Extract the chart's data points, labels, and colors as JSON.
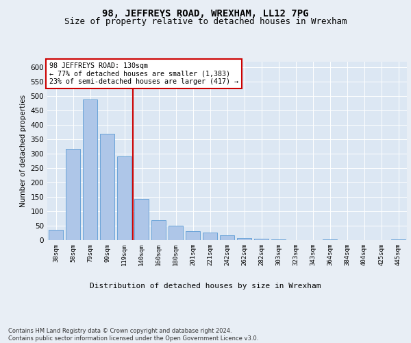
{
  "title": "98, JEFFREYS ROAD, WREXHAM, LL12 7PG",
  "subtitle": "Size of property relative to detached houses in Wrexham",
  "xlabel": "Distribution of detached houses by size in Wrexham",
  "ylabel": "Number of detached properties",
  "categories": [
    "38sqm",
    "58sqm",
    "79sqm",
    "99sqm",
    "119sqm",
    "140sqm",
    "160sqm",
    "180sqm",
    "201sqm",
    "221sqm",
    "242sqm",
    "262sqm",
    "282sqm",
    "303sqm",
    "323sqm",
    "343sqm",
    "364sqm",
    "384sqm",
    "404sqm",
    "425sqm",
    "445sqm"
  ],
  "values": [
    35,
    318,
    488,
    370,
    290,
    143,
    68,
    50,
    30,
    27,
    17,
    8,
    5,
    2,
    0,
    0,
    2,
    0,
    0,
    0,
    2
  ],
  "bar_color": "#aec6e8",
  "bar_edge_color": "#5b9bd5",
  "vline_color": "#cc0000",
  "vline_x": 4.5,
  "vline_label": "98 JEFFREYS ROAD: 130sqm",
  "annotation_line2": "← 77% of detached houses are smaller (1,383)",
  "annotation_line3": "23% of semi-detached houses are larger (417) →",
  "annotation_box_color": "#ffffff",
  "annotation_box_edge": "#cc0000",
  "ylim": [
    0,
    620
  ],
  "yticks": [
    0,
    50,
    100,
    150,
    200,
    250,
    300,
    350,
    400,
    450,
    500,
    550,
    600
  ],
  "bg_color": "#e8eef5",
  "plot_bg": "#dce7f3",
  "footer": "Contains HM Land Registry data © Crown copyright and database right 2024.\nContains public sector information licensed under the Open Government Licence v3.0.",
  "title_fontsize": 10,
  "subtitle_fontsize": 9
}
